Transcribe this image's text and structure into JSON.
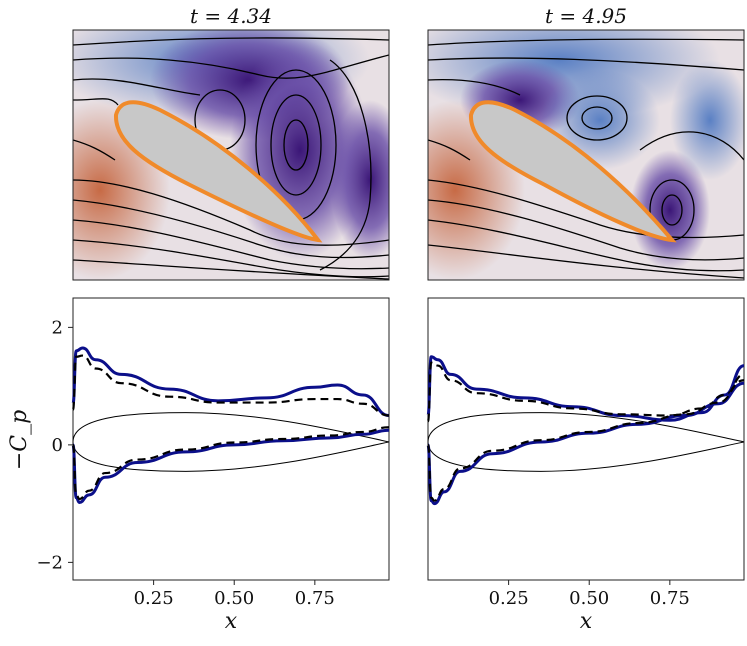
{
  "figure": {
    "panels": [
      {
        "title": "t = 4.34",
        "field_label": "vorticity field with streamlines, airfoil at incidence"
      },
      {
        "title": "t = 4.95",
        "field_label": "vorticity field with streamlines, airfoil at incidence"
      }
    ],
    "colors": {
      "airfoil": "#c8c8c8",
      "airfoil_edge": "#f08a2a",
      "blue_line": "#0b0f8a",
      "dashed_line": "#000000",
      "warm": "#c05a3a",
      "cool": "#3f1a8c"
    }
  },
  "chart_data": [
    {
      "type": "line",
      "title": "t = 4.34",
      "xlabel": "x",
      "ylabel": "−C_p",
      "xlim": [
        0.0,
        0.98
      ],
      "ylim": [
        -2.3,
        2.5
      ],
      "xticks": [
        "0.25",
        "0.50",
        "0.75"
      ],
      "yticks": [
        "−2",
        "0",
        "2"
      ],
      "series": [
        {
          "name": "upper (solid)",
          "x": [
            0.0,
            0.01,
            0.03,
            0.07,
            0.15,
            0.3,
            0.45,
            0.6,
            0.75,
            0.82,
            0.9,
            0.98
          ],
          "values": [
            0.7,
            1.6,
            1.65,
            1.45,
            1.2,
            0.95,
            0.75,
            0.8,
            0.98,
            1.02,
            0.85,
            0.5
          ]
        },
        {
          "name": "upper (dashed)",
          "x": [
            0.0,
            0.01,
            0.03,
            0.07,
            0.15,
            0.3,
            0.45,
            0.6,
            0.75,
            0.82,
            0.9,
            0.98
          ],
          "values": [
            0.6,
            1.5,
            1.52,
            1.3,
            1.05,
            0.82,
            0.72,
            0.72,
            0.78,
            0.78,
            0.7,
            0.5
          ]
        },
        {
          "name": "lower (solid)",
          "x": [
            0.0,
            0.01,
            0.02,
            0.05,
            0.1,
            0.2,
            0.35,
            0.5,
            0.65,
            0.8,
            0.9,
            0.98
          ],
          "values": [
            0.0,
            -0.9,
            -0.98,
            -0.85,
            -0.55,
            -0.3,
            -0.12,
            0.0,
            0.07,
            0.12,
            0.18,
            0.25
          ]
        },
        {
          "name": "lower (dashed)",
          "x": [
            0.0,
            0.01,
            0.02,
            0.05,
            0.1,
            0.2,
            0.35,
            0.5,
            0.65,
            0.8,
            0.9,
            0.98
          ],
          "values": [
            0.0,
            -0.85,
            -0.92,
            -0.78,
            -0.48,
            -0.25,
            -0.08,
            0.04,
            0.1,
            0.16,
            0.22,
            0.3
          ]
        }
      ]
    },
    {
      "type": "line",
      "title": "t = 4.95",
      "xlabel": "x",
      "ylabel": "",
      "xlim": [
        0.0,
        0.98
      ],
      "ylim": [
        -2.3,
        2.5
      ],
      "xticks": [
        "0.25",
        "0.50",
        "0.75"
      ],
      "yticks": [],
      "series": [
        {
          "name": "upper (solid)",
          "x": [
            0.0,
            0.01,
            0.03,
            0.07,
            0.15,
            0.3,
            0.45,
            0.6,
            0.75,
            0.85,
            0.92,
            0.98
          ],
          "values": [
            0.5,
            1.5,
            1.45,
            1.2,
            0.95,
            0.8,
            0.65,
            0.5,
            0.42,
            0.55,
            0.85,
            1.35
          ]
        },
        {
          "name": "upper (dashed)",
          "x": [
            0.0,
            0.01,
            0.03,
            0.07,
            0.15,
            0.3,
            0.45,
            0.6,
            0.75,
            0.85,
            0.92,
            0.98
          ],
          "values": [
            0.4,
            1.4,
            1.35,
            1.1,
            0.88,
            0.75,
            0.62,
            0.52,
            0.5,
            0.62,
            0.85,
            1.2
          ]
        },
        {
          "name": "lower (solid)",
          "x": [
            0.0,
            0.01,
            0.02,
            0.05,
            0.1,
            0.2,
            0.35,
            0.5,
            0.65,
            0.8,
            0.9,
            0.98
          ],
          "values": [
            0.0,
            -0.95,
            -1.0,
            -0.8,
            -0.45,
            -0.15,
            0.05,
            0.2,
            0.35,
            0.5,
            0.7,
            1.05
          ]
        },
        {
          "name": "lower (dashed)",
          "x": [
            0.0,
            0.01,
            0.02,
            0.05,
            0.1,
            0.2,
            0.35,
            0.5,
            0.65,
            0.8,
            0.9,
            0.98
          ],
          "values": [
            0.0,
            -0.9,
            -0.95,
            -0.75,
            -0.4,
            -0.1,
            0.08,
            0.22,
            0.37,
            0.52,
            0.72,
            1.1
          ]
        }
      ]
    }
  ]
}
